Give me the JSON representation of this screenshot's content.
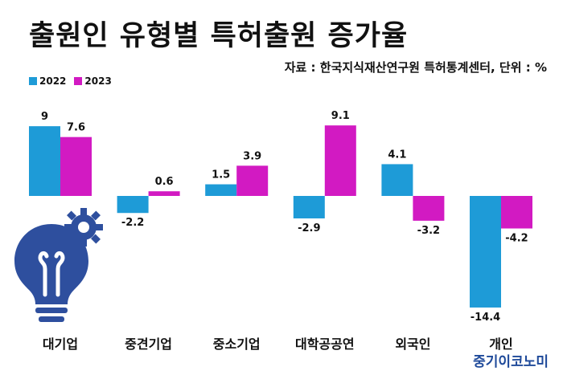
{
  "title": "출원인 유형별 특허출원 증가율",
  "source": "자료 : 한국지식재산연구원 특허통계센터, 단위 : %",
  "brand": "중기이코노미",
  "colors": {
    "series_2022": "#1e9bd7",
    "series_2023": "#d21ac2",
    "bulb": "#2e4f9e"
  },
  "chart_data": {
    "type": "bar",
    "categories": [
      "대기업",
      "중견기업",
      "중소기업",
      "대학공공연",
      "외국인",
      "개인"
    ],
    "series": [
      {
        "name": "2022",
        "values": [
          9,
          -2.2,
          1.5,
          -2.9,
          4.1,
          -14.4
        ]
      },
      {
        "name": "2023",
        "values": [
          7.6,
          0.6,
          3.9,
          9.1,
          -3.2,
          -4.2
        ]
      }
    ],
    "value_labels": [
      [
        "9",
        "-2.2",
        "1.5",
        "-2.9",
        "4.1",
        "-14.4"
      ],
      [
        "7.6",
        "0.6",
        "3.9",
        "9.1",
        "-3.2",
        "-4.2"
      ]
    ],
    "legend_position": "top-left",
    "grid": false,
    "xlabel": "",
    "ylabel": ""
  }
}
